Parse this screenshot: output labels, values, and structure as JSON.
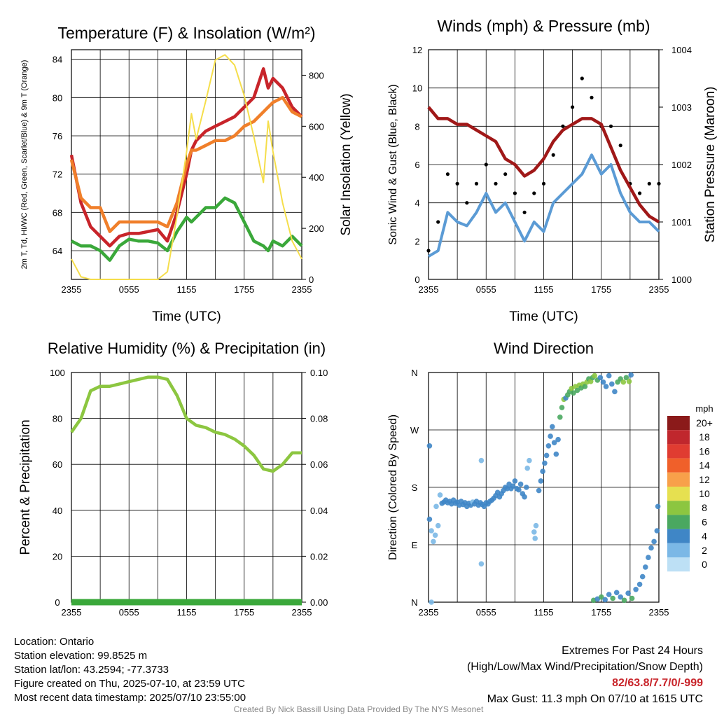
{
  "colors": {
    "red": "#c8242a",
    "green": "#3aa83a",
    "orange": "#f07f2a",
    "yellow": "#f5de4b",
    "blue": "#5b9bd5",
    "black": "#000000",
    "maroon": "#a01818",
    "rh": "#8cc640",
    "precip": "#3aa83a"
  },
  "chart_data": [
    {
      "type": "line",
      "title": "Temperature (F) & Insolation (W/m²)",
      "xlabel": "Time (UTC)",
      "ylabel": "2m T, Td, HI/WC (Red, Green, Scarlet/Blue) & 9m T (Orange)",
      "y2label": "Solar Insolation (Yellow)",
      "x_ticks": [
        "2355",
        "0555",
        "1155",
        "1755",
        "2355"
      ],
      "ylim": [
        61,
        85
      ],
      "y_ticks": [
        64,
        68,
        72,
        76,
        80,
        84
      ],
      "y2lim": [
        0,
        900
      ],
      "y2_ticks": [
        0,
        200,
        400,
        600,
        800
      ],
      "x_hours": [
        0,
        1,
        2,
        3,
        4,
        5,
        6,
        7,
        8,
        9,
        10,
        11,
        12,
        12.5,
        13,
        14,
        15,
        16,
        17,
        18,
        19,
        20,
        20.5,
        21,
        22,
        23,
        24
      ],
      "series": [
        {
          "color_key": "red",
          "axis": "left",
          "values": [
            74,
            69,
            66.5,
            65.5,
            64.5,
            65.5,
            65.8,
            65.8,
            66,
            66.2,
            65,
            68,
            72,
            74.5,
            75.5,
            76.5,
            77,
            77.5,
            78,
            79,
            80,
            83,
            81,
            82,
            81,
            79,
            78
          ]
        },
        {
          "color_key": "orange",
          "axis": "left",
          "values": [
            73.5,
            69.5,
            68.5,
            68.5,
            66,
            67,
            67,
            67,
            67,
            67,
            66.5,
            69,
            73,
            74.5,
            74.5,
            75,
            75.5,
            75.5,
            76,
            77,
            77.5,
            78.5,
            79,
            79.5,
            80,
            78.5,
            78
          ]
        },
        {
          "color_key": "green",
          "axis": "left",
          "values": [
            65,
            64.5,
            64.5,
            64,
            63,
            64.5,
            65.2,
            65,
            65,
            64.8,
            64,
            66,
            67.5,
            67,
            67.5,
            68.5,
            68.5,
            69.5,
            69,
            67,
            65,
            64.5,
            64,
            65,
            64.5,
            65.5,
            64.5
          ]
        },
        {
          "color_key": "yellow",
          "axis": "right",
          "values": [
            80,
            10,
            0,
            0,
            0,
            0,
            0,
            0,
            0,
            0,
            30,
            250,
            500,
            650,
            550,
            700,
            860,
            880,
            840,
            720,
            560,
            380,
            620,
            500,
            300,
            150,
            80
          ]
        }
      ]
    },
    {
      "type": "line",
      "title": "Winds (mph) & Pressure (mb)",
      "xlabel": "Time (UTC)",
      "ylabel": "Sonic Wind & Gust (Blue, Black)",
      "y2label": "Station Pressure (Maroon)",
      "x_ticks": [
        "2355",
        "0555",
        "1155",
        "1755",
        "2355"
      ],
      "ylim": [
        0,
        12
      ],
      "y_ticks": [
        0,
        2,
        4,
        6,
        8,
        10,
        12
      ],
      "y2lim": [
        1000,
        1004
      ],
      "y2_ticks": [
        1000,
        1001,
        1002,
        1003,
        1004
      ],
      "x_hours": [
        0,
        1,
        2,
        3,
        4,
        5,
        6,
        7,
        8,
        9,
        10,
        11,
        12,
        13,
        14,
        15,
        16,
        17,
        18,
        19,
        20,
        21,
        22,
        23,
        24
      ],
      "series": [
        {
          "name": "wind",
          "color_key": "blue",
          "axis": "left",
          "values": [
            1.2,
            1.5,
            3.5,
            3,
            2.8,
            3.5,
            4.5,
            3.5,
            4,
            3,
            2,
            3,
            2.5,
            4,
            4.5,
            5,
            5.5,
            6.5,
            5.5,
            6,
            4.5,
            3.5,
            3,
            3,
            2.5
          ]
        },
        {
          "name": "gust",
          "color_key": "black",
          "axis": "left",
          "values": [
            1.5,
            3,
            5.5,
            5,
            4,
            5,
            6,
            5,
            5.5,
            4.5,
            3.5,
            4.5,
            5,
            6.5,
            8,
            9,
            10.5,
            9.5,
            8,
            8,
            7,
            5,
            4.5,
            5,
            5
          ]
        },
        {
          "name": "pressure",
          "color_key": "maroon",
          "axis": "right",
          "values": [
            1003.0,
            1002.8,
            1002.8,
            1002.7,
            1002.7,
            1002.6,
            1002.5,
            1002.4,
            1002.1,
            1002.0,
            1001.8,
            1001.9,
            1002.1,
            1002.4,
            1002.6,
            1002.7,
            1002.8,
            1002.8,
            1002.7,
            1002.3,
            1001.9,
            1001.6,
            1001.3,
            1001.1,
            1001.0
          ]
        }
      ]
    },
    {
      "type": "line",
      "title": "Relative Humidity (%) & Precipitation (in)",
      "ylabel": "Percent & Precipitation",
      "x_ticks": [
        "2355",
        "0555",
        "1155",
        "1755",
        "2355"
      ],
      "ylim": [
        0,
        100
      ],
      "y_ticks": [
        0,
        20,
        40,
        60,
        80,
        100
      ],
      "y2lim": [
        0,
        0.1
      ],
      "y2_ticks": [
        "0.00",
        "0.02",
        "0.04",
        "0.06",
        "0.08",
        "0.10"
      ],
      "x_hours": [
        0,
        1,
        2,
        3,
        4,
        5,
        6,
        7,
        8,
        9,
        10,
        11,
        12,
        13,
        14,
        15,
        16,
        17,
        18,
        19,
        20,
        21,
        22,
        23,
        24
      ],
      "series": [
        {
          "name": "rh",
          "color_key": "rh",
          "axis": "left",
          "values": [
            74,
            80,
            92,
            94,
            94,
            95,
            96,
            97,
            98,
            98,
            97,
            90,
            80,
            77,
            76,
            74,
            73,
            71,
            68,
            64,
            58,
            57,
            60,
            65,
            65
          ]
        },
        {
          "name": "precip",
          "color_key": "precip",
          "axis": "right",
          "values": [
            0,
            0
          ]
        }
      ]
    },
    {
      "type": "scatter",
      "title": "Wind Direction",
      "ylabel": "Direction (Colored By Speed)",
      "x_ticks": [
        "2355",
        "0555",
        "1155",
        "1755",
        "2355"
      ],
      "y_ticks": [
        "N",
        "E",
        "S",
        "W",
        "N"
      ],
      "ylim": [
        0,
        360
      ],
      "legend": {
        "title": "mph",
        "placement": "right",
        "labels": [
          "20+",
          "18",
          "16",
          "14",
          "12",
          "10",
          "8",
          "6",
          "4",
          "2",
          "0"
        ],
        "colors": [
          "#8b1a1a",
          "#c0272d",
          "#e03c31",
          "#f0602a",
          "#f8a04a",
          "#e6e050",
          "#8cc640",
          "#4aa860",
          "#3f86c6",
          "#7bb8e6",
          "#bde0f5"
        ]
      },
      "points": [
        {
          "x": 0.1,
          "y": 130,
          "s": 3
        },
        {
          "x": 0.3,
          "y": 112,
          "s": 1
        },
        {
          "x": 0.5,
          "y": 95,
          "s": 1
        },
        {
          "x": 0.7,
          "y": 105,
          "s": 1
        },
        {
          "x": 0.8,
          "y": 150,
          "s": 1
        },
        {
          "x": 1.0,
          "y": 120,
          "s": 1
        },
        {
          "x": 1.2,
          "y": 168,
          "s": 2
        },
        {
          "x": 1.4,
          "y": 155,
          "s": 3
        },
        {
          "x": 0.3,
          "y": 0,
          "s": 1
        },
        {
          "x": 0.1,
          "y": 245,
          "s": 3
        },
        {
          "x": 1.6,
          "y": 157,
          "s": 4
        },
        {
          "x": 1.8,
          "y": 160,
          "s": 4
        },
        {
          "x": 2.0,
          "y": 156,
          "s": 3
        },
        {
          "x": 2.2,
          "y": 158,
          "s": 4
        },
        {
          "x": 2.4,
          "y": 154,
          "s": 3
        },
        {
          "x": 2.6,
          "y": 160,
          "s": 4
        },
        {
          "x": 2.8,
          "y": 155,
          "s": 3
        },
        {
          "x": 3.0,
          "y": 157,
          "s": 4
        },
        {
          "x": 3.2,
          "y": 152,
          "s": 3
        },
        {
          "x": 3.4,
          "y": 158,
          "s": 4
        },
        {
          "x": 3.6,
          "y": 153,
          "s": 3
        },
        {
          "x": 3.8,
          "y": 156,
          "s": 4
        },
        {
          "x": 4.0,
          "y": 150,
          "s": 3
        },
        {
          "x": 4.2,
          "y": 155,
          "s": 4
        },
        {
          "x": 4.4,
          "y": 152,
          "s": 3
        },
        {
          "x": 4.6,
          "y": 157,
          "s": 2
        },
        {
          "x": 4.8,
          "y": 154,
          "s": 3
        },
        {
          "x": 5.0,
          "y": 158,
          "s": 4
        },
        {
          "x": 5.2,
          "y": 152,
          "s": 4
        },
        {
          "x": 5.4,
          "y": 156,
          "s": 3
        },
        {
          "x": 5.6,
          "y": 153,
          "s": 4
        },
        {
          "x": 5.8,
          "y": 150,
          "s": 3
        },
        {
          "x": 6.0,
          "y": 156,
          "s": 4
        },
        {
          "x": 6.2,
          "y": 154,
          "s": 3
        },
        {
          "x": 6.4,
          "y": 158,
          "s": 4
        },
        {
          "x": 6.6,
          "y": 160,
          "s": 3
        },
        {
          "x": 6.8,
          "y": 163,
          "s": 4
        },
        {
          "x": 7.0,
          "y": 167,
          "s": 3
        },
        {
          "x": 7.2,
          "y": 172,
          "s": 4
        },
        {
          "x": 7.4,
          "y": 165,
          "s": 3
        },
        {
          "x": 7.6,
          "y": 170,
          "s": 4
        },
        {
          "x": 7.8,
          "y": 175,
          "s": 3
        },
        {
          "x": 8.0,
          "y": 180,
          "s": 4
        },
        {
          "x": 8.2,
          "y": 178,
          "s": 3
        },
        {
          "x": 8.4,
          "y": 185,
          "s": 4
        },
        {
          "x": 8.6,
          "y": 178,
          "s": 3
        },
        {
          "x": 8.8,
          "y": 182,
          "s": 4
        },
        {
          "x": 9.0,
          "y": 190,
          "s": 3
        },
        {
          "x": 9.2,
          "y": 178,
          "s": 4
        },
        {
          "x": 9.4,
          "y": 176,
          "s": 3
        },
        {
          "x": 9.6,
          "y": 185,
          "s": 4
        },
        {
          "x": 9.8,
          "y": 170,
          "s": 3
        },
        {
          "x": 10.0,
          "y": 165,
          "s": 4
        },
        {
          "x": 10.2,
          "y": 180,
          "s": 3
        },
        {
          "x": 10.3,
          "y": 210,
          "s": 1
        },
        {
          "x": 10.5,
          "y": 222,
          "s": 1
        },
        {
          "x": 5.5,
          "y": 60,
          "s": 1
        },
        {
          "x": 5.5,
          "y": 222,
          "s": 1
        },
        {
          "x": 11.0,
          "y": 110,
          "s": 1
        },
        {
          "x": 11.1,
          "y": 100,
          "s": 1
        },
        {
          "x": 11.2,
          "y": 120,
          "s": 2
        },
        {
          "x": 11.5,
          "y": 175,
          "s": 4
        },
        {
          "x": 11.7,
          "y": 190,
          "s": 3
        },
        {
          "x": 11.9,
          "y": 205,
          "s": 4
        },
        {
          "x": 12.1,
          "y": 218,
          "s": 3
        },
        {
          "x": 12.3,
          "y": 230,
          "s": 4
        },
        {
          "x": 12.5,
          "y": 245,
          "s": 4
        },
        {
          "x": 12.7,
          "y": 260,
          "s": 3
        },
        {
          "x": 12.9,
          "y": 275,
          "s": 4
        },
        {
          "x": 13.1,
          "y": 250,
          "s": 4
        },
        {
          "x": 13.3,
          "y": 232,
          "s": 3
        },
        {
          "x": 13.5,
          "y": 255,
          "s": 4
        },
        {
          "x": 13.7,
          "y": 290,
          "s": 6
        },
        {
          "x": 13.9,
          "y": 305,
          "s": 6
        },
        {
          "x": 14.1,
          "y": 318,
          "s": 7
        },
        {
          "x": 14.3,
          "y": 320,
          "s": 4
        },
        {
          "x": 14.5,
          "y": 325,
          "s": 6
        },
        {
          "x": 14.7,
          "y": 330,
          "s": 6
        },
        {
          "x": 14.9,
          "y": 335,
          "s": 7
        },
        {
          "x": 15.1,
          "y": 328,
          "s": 6
        },
        {
          "x": 15.3,
          "y": 338,
          "s": 7
        },
        {
          "x": 15.5,
          "y": 332,
          "s": 6
        },
        {
          "x": 15.7,
          "y": 340,
          "s": 7
        },
        {
          "x": 15.9,
          "y": 336,
          "s": 6
        },
        {
          "x": 16.1,
          "y": 342,
          "s": 7
        },
        {
          "x": 16.3,
          "y": 338,
          "s": 6
        },
        {
          "x": 16.5,
          "y": 345,
          "s": 7
        },
        {
          "x": 16.7,
          "y": 350,
          "s": 6
        },
        {
          "x": 16.9,
          "y": 346,
          "s": 7
        },
        {
          "x": 17.1,
          "y": 352,
          "s": 6
        },
        {
          "x": 17.3,
          "y": 355,
          "s": 7
        },
        {
          "x": 17.6,
          "y": 348,
          "s": 6
        },
        {
          "x": 17.9,
          "y": 352,
          "s": 4
        },
        {
          "x": 18.2,
          "y": 345,
          "s": 4
        },
        {
          "x": 18.5,
          "y": 338,
          "s": 3
        },
        {
          "x": 18.8,
          "y": 355,
          "s": 4
        },
        {
          "x": 19.1,
          "y": 342,
          "s": 4
        },
        {
          "x": 19.4,
          "y": 330,
          "s": 4
        },
        {
          "x": 19.7,
          "y": 345,
          "s": 6
        },
        {
          "x": 20.0,
          "y": 350,
          "s": 6
        },
        {
          "x": 20.3,
          "y": 345,
          "s": 7
        },
        {
          "x": 20.6,
          "y": 352,
          "s": 6
        },
        {
          "x": 20.9,
          "y": 346,
          "s": 7
        },
        {
          "x": 21.1,
          "y": 356,
          "s": 4
        },
        {
          "x": 17.2,
          "y": 3,
          "s": 6
        },
        {
          "x": 17.6,
          "y": 5,
          "s": 4
        },
        {
          "x": 18.0,
          "y": 8,
          "s": 6
        },
        {
          "x": 18.4,
          "y": 4,
          "s": 4
        },
        {
          "x": 18.8,
          "y": 12,
          "s": 4
        },
        {
          "x": 19.2,
          "y": 6,
          "s": 6
        },
        {
          "x": 19.6,
          "y": 15,
          "s": 4
        },
        {
          "x": 20.0,
          "y": 8,
          "s": 4
        },
        {
          "x": 20.4,
          "y": 3,
          "s": 6
        },
        {
          "x": 20.8,
          "y": 14,
          "s": 4
        },
        {
          "x": 21.2,
          "y": 6,
          "s": 6
        },
        {
          "x": 21.6,
          "y": 20,
          "s": 4
        },
        {
          "x": 22.0,
          "y": 28,
          "s": 4
        },
        {
          "x": 22.3,
          "y": 40,
          "s": 4
        },
        {
          "x": 22.6,
          "y": 55,
          "s": 4
        },
        {
          "x": 22.9,
          "y": 70,
          "s": 3
        },
        {
          "x": 23.2,
          "y": 85,
          "s": 4
        },
        {
          "x": 23.5,
          "y": 95,
          "s": 4
        },
        {
          "x": 23.8,
          "y": 112,
          "s": 4
        },
        {
          "x": 23.9,
          "y": 150,
          "s": 4
        }
      ]
    }
  ],
  "footer": {
    "location": "Location: Ontario",
    "elevation": "Station elevation: 99.8525 m",
    "latlon": "Station lat/lon: 43.2594; -77.3733",
    "created": "Figure created on Thu, 2025-07-10, at 23:59 UTC",
    "recent": "Most recent data timestamp: 2025/07/10 23:55:00"
  },
  "extremes": {
    "title": "Extremes For Past 24 Hours",
    "subtitle": "(High/Low/Max Wind/Precipitation/Snow Depth)",
    "values": "82/63.8/7.7/0/-999",
    "gust": "Max Gust: 11.3 mph On 07/10 at 1615 UTC"
  },
  "credit": "Created By Nick Bassill Using Data Provided By The NYS Mesonet"
}
